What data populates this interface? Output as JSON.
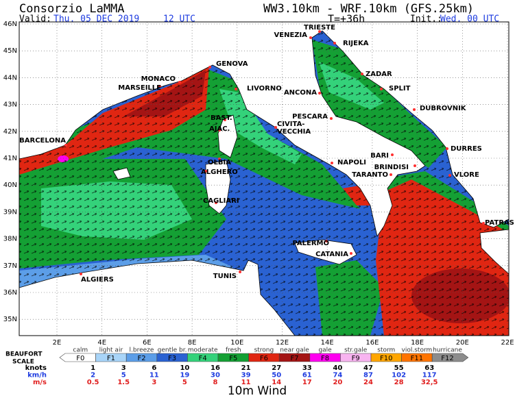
{
  "header": {
    "title": "Consorzio LaMMA",
    "valid_label": "Valid:",
    "valid_date": "Thu, 05 DEC 2019",
    "valid_time": "12 UTC",
    "model": "WW3.10km - WRF.10km (GFS.25km)",
    "step": "T=+36h",
    "init_label": "Init.:",
    "init": "Wed, 00 UTC"
  },
  "map": {
    "lat_labels": [
      "46N",
      "45N",
      "44N",
      "43N",
      "42N",
      "41N",
      "40N",
      "39N",
      "38N",
      "37N",
      "36N",
      "35N"
    ],
    "lon_labels": [
      "2E",
      "4E",
      "6E",
      "8E",
      "10E",
      "12E",
      "14E",
      "16E",
      "18E",
      "20E",
      "22E"
    ],
    "cities": [
      "TRIESTE",
      "VENEZIA",
      "RIJEKA",
      "GENOVA",
      "MONACO",
      "MARSEILLE",
      "ZADAR",
      "SPLIT",
      "LIVORNO",
      "ANCONA",
      "DUBROVNIK",
      "PESCARA",
      "BAST.",
      "AJAC.",
      "CIVITA-",
      "VECCHIA",
      "BARCELONA",
      "BARI",
      "BRINDISI",
      "DURRES",
      "NAPOLI",
      "OLBIA",
      "ALGHERO",
      "TARANTO",
      "VLORE",
      "CAGLIARI",
      "PATRAS",
      "PALERMO",
      "CATANIA",
      "TUNIS",
      "ALGIERS"
    ]
  },
  "scale": {
    "title": [
      "BEAUFORT",
      "SCALE"
    ],
    "levels": [
      {
        "name": "F0",
        "desc": "calm",
        "color": "#ffffff"
      },
      {
        "name": "F1",
        "desc": "light air",
        "color": "#a8d4f8"
      },
      {
        "name": "F2",
        "desc": "l.breeze",
        "color": "#5c9ee8"
      },
      {
        "name": "F3",
        "desc": "gentle br.",
        "color": "#2a62d2"
      },
      {
        "name": "F4",
        "desc": "moderate",
        "color": "#34d27a"
      },
      {
        "name": "F5",
        "desc": "fresh",
        "color": "#14a034"
      },
      {
        "name": "F6",
        "desc": "strong",
        "color": "#e02612"
      },
      {
        "name": "F7",
        "desc": "near gale",
        "color": "#a41414"
      },
      {
        "name": "F8",
        "desc": "gale",
        "color": "#ff00f0"
      },
      {
        "name": "F9",
        "desc": "str.gale",
        "color": "#f8b4f0"
      },
      {
        "name": "F10",
        "desc": "storm",
        "color": "#ffa600"
      },
      {
        "name": "F11",
        "desc": "viol.storm",
        "color": "#ff7400"
      },
      {
        "name": "F12",
        "desc": "hurricane",
        "color": "#8c8c8c"
      }
    ],
    "rows": [
      {
        "unit": "knots",
        "color": "#000000",
        "values": [
          1,
          3,
          6,
          10,
          16,
          21,
          27,
          33,
          40,
          47,
          55,
          63
        ]
      },
      {
        "unit": "km/h",
        "color": "#1e3ce0",
        "values": [
          2,
          5,
          11,
          19,
          30,
          39,
          50,
          61,
          74,
          87,
          102,
          117
        ]
      },
      {
        "unit": "m/s",
        "color": "#e01e1e",
        "values": [
          "0.5",
          "1.5",
          "3",
          "5",
          "8",
          "11",
          "14",
          "17",
          "20",
          "24",
          "28",
          "32,5"
        ]
      }
    ]
  },
  "footer": "10m Wind"
}
